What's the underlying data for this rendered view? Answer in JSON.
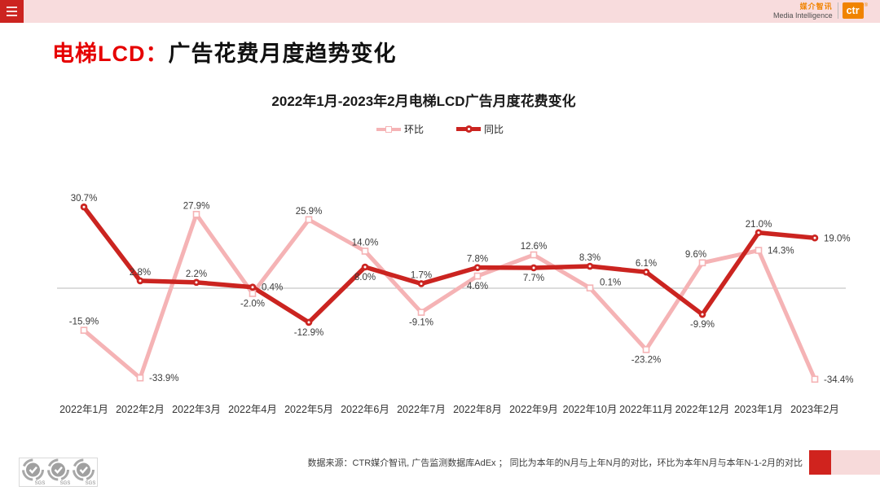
{
  "header": {
    "brand_cn": "媒介智讯",
    "brand_en": "Media Intelligence",
    "brand_logo": "ctr",
    "brand_reg": "®"
  },
  "title": {
    "highlight": "电梯LCD：",
    "rest": "广告花费月度趋势变化"
  },
  "chart_data": {
    "type": "line",
    "title": "2022年1月-2023年2月电梯LCD广告月度花费变化",
    "categories": [
      "2022年1月",
      "2022年2月",
      "2022年3月",
      "2022年4月",
      "2022年5月",
      "2022年6月",
      "2022年7月",
      "2022年8月",
      "2022年9月",
      "2022年10月",
      "2022年11月",
      "2022年12月",
      "2023年1月",
      "2023年2月"
    ],
    "series": [
      {
        "name": "环比",
        "marker": "square",
        "color": "#f5b3b5",
        "values": [
          -15.9,
          -33.9,
          27.9,
          -2.0,
          25.9,
          14.0,
          -9.1,
          4.6,
          12.6,
          0.1,
          -23.2,
          9.6,
          14.3,
          -34.4
        ]
      },
      {
        "name": "同比",
        "marker": "circle",
        "color": "#cb2420",
        "values": [
          30.7,
          2.8,
          2.2,
          0.4,
          -12.9,
          8.0,
          1.7,
          7.8,
          7.7,
          8.3,
          6.1,
          -9.9,
          21.0,
          19.0
        ]
      }
    ],
    "baseline": 0,
    "ylim": [
      -40,
      35
    ],
    "grid": false,
    "legend_position": "top-center",
    "label_format": "one-decimal-percent"
  },
  "footer": {
    "source_note": "数据来源：CTR媒介智讯, 广告监测数据库AdEx ； 同比为本年的N月与上年N月的对比，环比为本年N月与本年N-1-2月的对比",
    "sgs_label": "SGS"
  },
  "colors": {
    "header_bar": "#f8dcdd",
    "menu_box": "#cc2420",
    "title_red": "#e60000",
    "brand_orange": "#f08300",
    "series_yoy_red": "#cb2420",
    "series_mom_pink": "#f5b3b5",
    "footer_red": "#d0231e",
    "footer_pink": "#f7dada",
    "axis_line": "#b9b9b9"
  }
}
